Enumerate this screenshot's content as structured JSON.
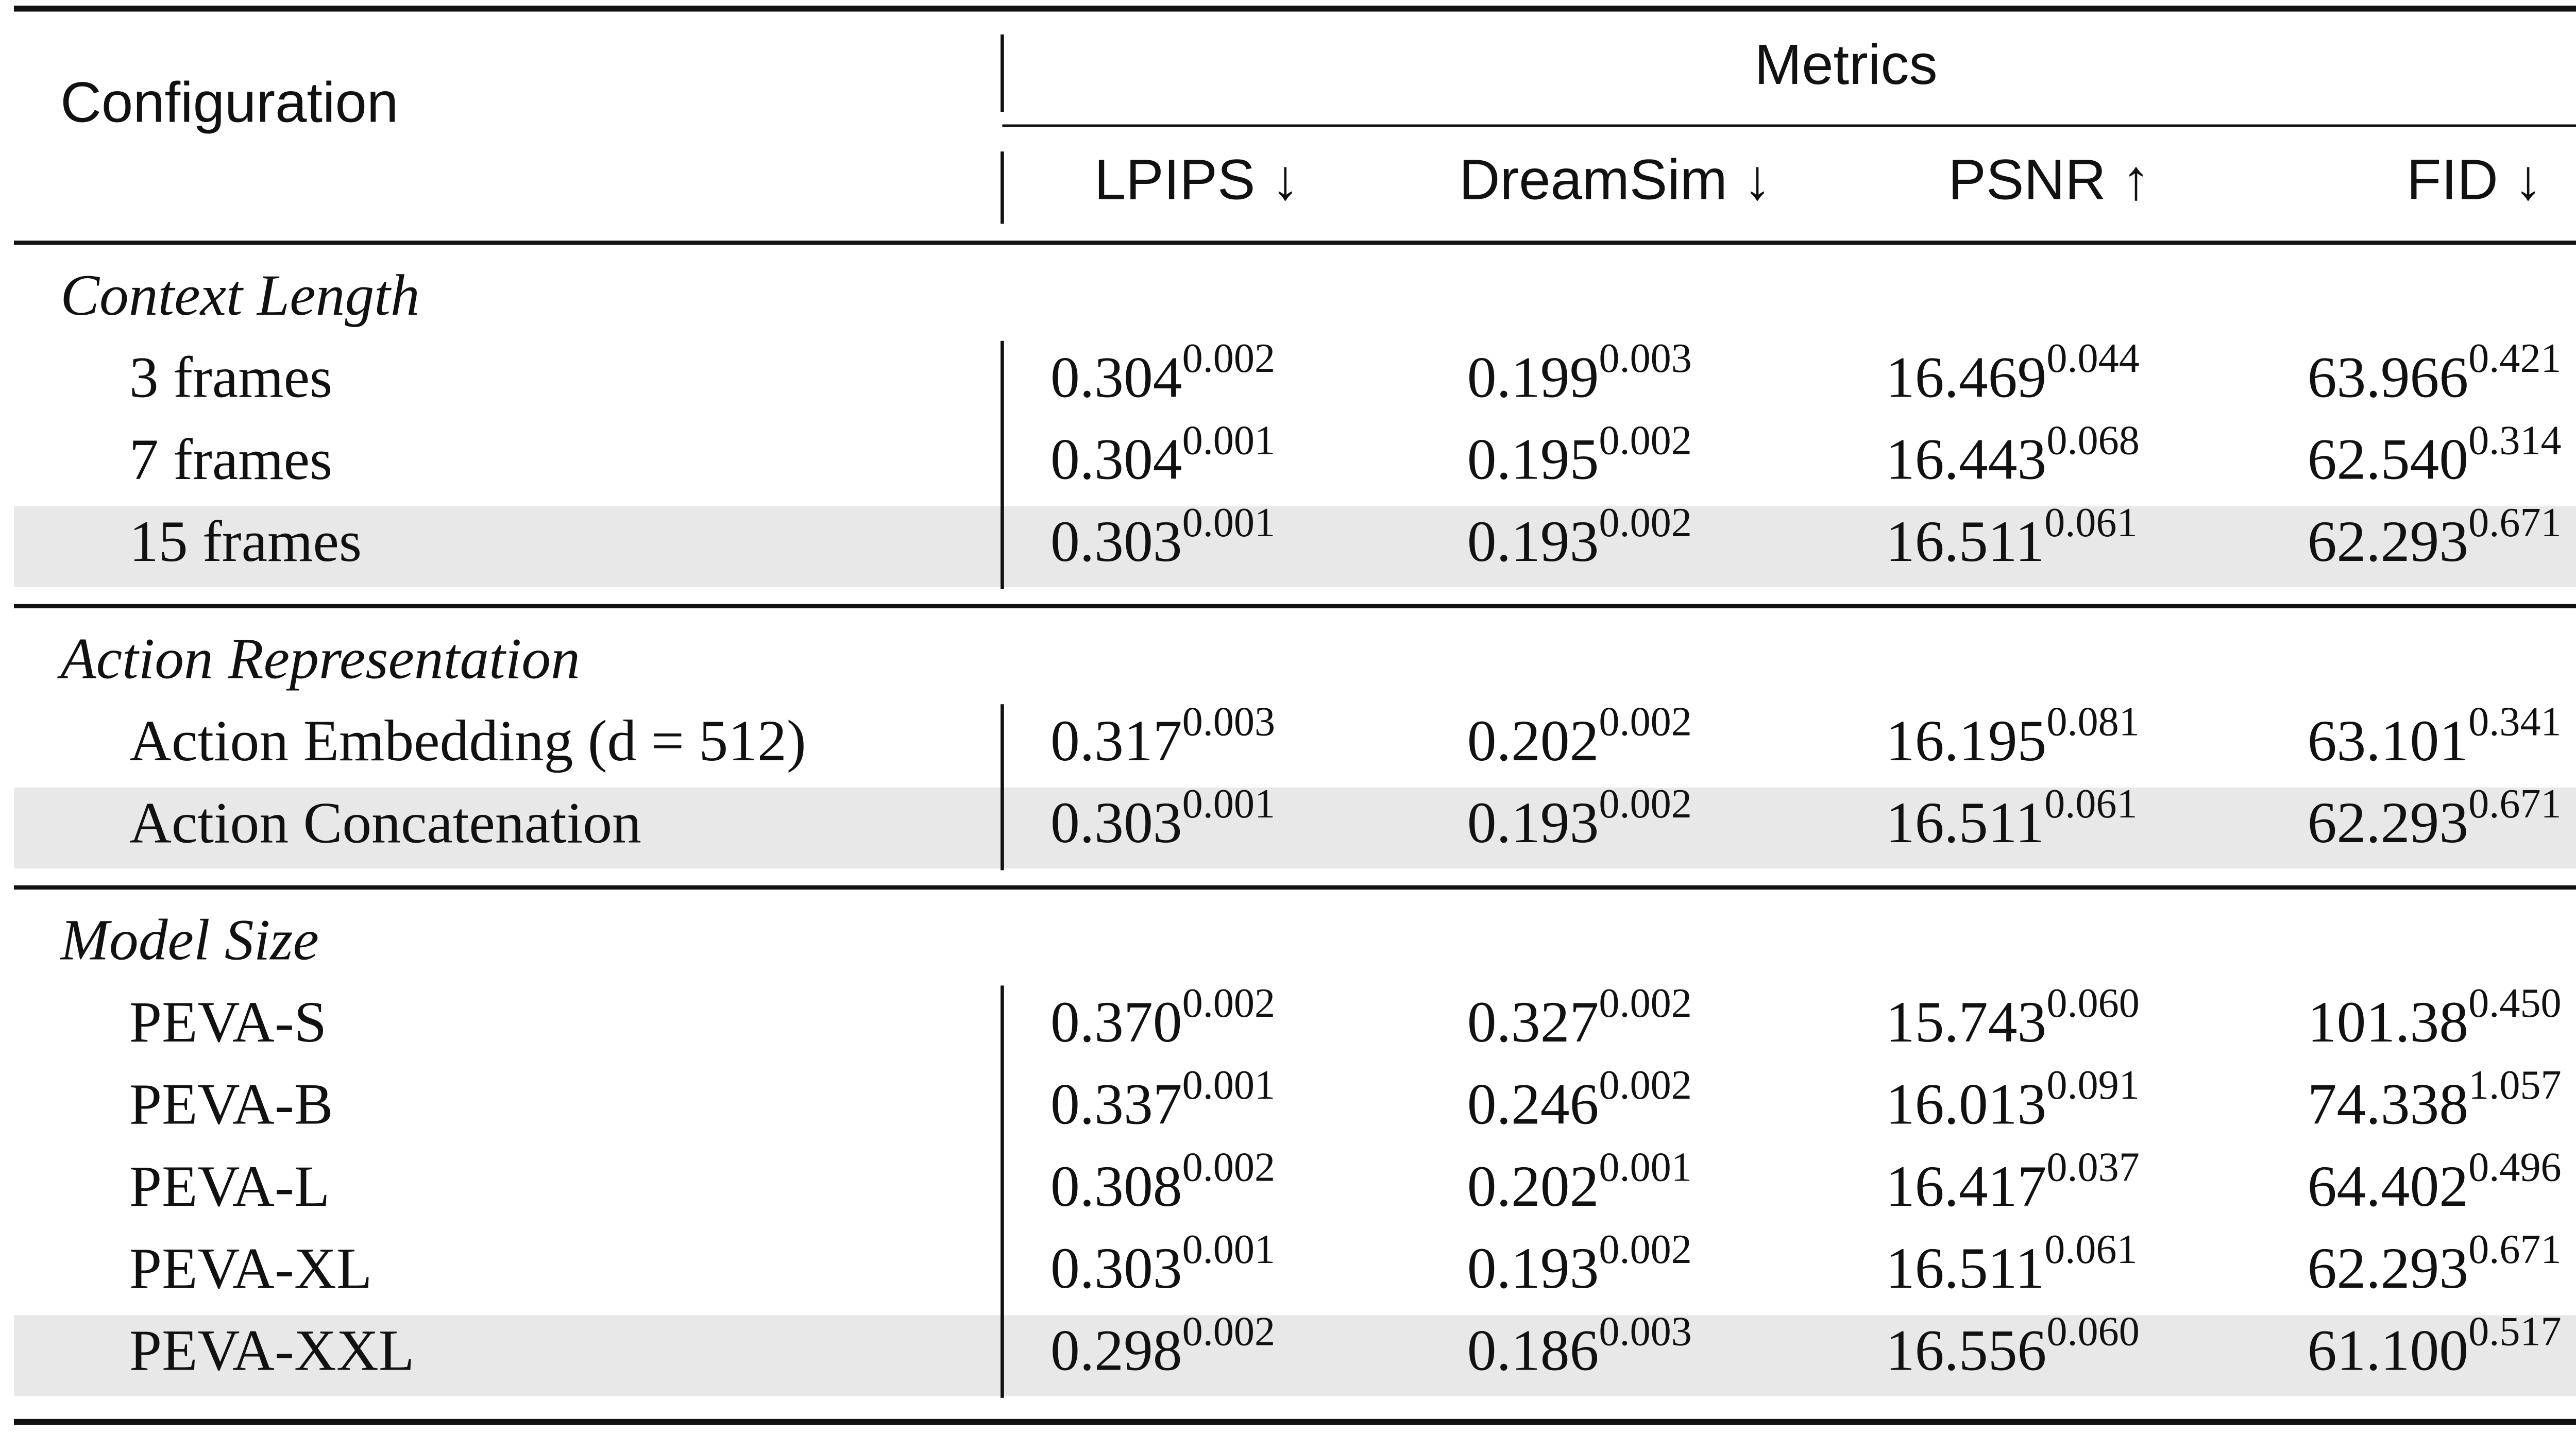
{
  "table": {
    "header": {
      "configuration": "Configuration",
      "metrics": "Metrics",
      "columns": [
        "LPIPS ↓",
        "DreamSim ↓",
        "PSNR ↑",
        "FID ↓"
      ]
    },
    "sections": [
      {
        "title": "Context Length",
        "rows": [
          {
            "label": "3 frames",
            "cells": [
              {
                "value": "0.304",
                "sup": "0.002"
              },
              {
                "value": "0.199",
                "sup": "0.003"
              },
              {
                "value": "16.469",
                "sup": "0.044"
              },
              {
                "value": "63.966",
                "sup": "0.421"
              }
            ]
          },
          {
            "label": "7 frames",
            "cells": [
              {
                "value": "0.304",
                "sup": "0.001"
              },
              {
                "value": "0.195",
                "sup": "0.002"
              },
              {
                "value": "16.443",
                "sup": "0.068"
              },
              {
                "value": "62.540",
                "sup": "0.314"
              }
            ]
          },
          {
            "label": "15 frames",
            "shaded": true,
            "cells": [
              {
                "value": "0.303",
                "sup": "0.001"
              },
              {
                "value": "0.193",
                "sup": "0.002"
              },
              {
                "value": "16.511",
                "sup": "0.061"
              },
              {
                "value": "62.293",
                "sup": "0.671"
              }
            ]
          }
        ]
      },
      {
        "title": "Action Representation",
        "rows": [
          {
            "label": "Action Embedding (d = 512)",
            "cells": [
              {
                "value": "0.317",
                "sup": "0.003"
              },
              {
                "value": "0.202",
                "sup": "0.002"
              },
              {
                "value": "16.195",
                "sup": "0.081"
              },
              {
                "value": "63.101",
                "sup": "0.341"
              }
            ]
          },
          {
            "label": "Action Concatenation",
            "shaded": true,
            "cells": [
              {
                "value": "0.303",
                "sup": "0.001"
              },
              {
                "value": "0.193",
                "sup": "0.002"
              },
              {
                "value": "16.511",
                "sup": "0.061"
              },
              {
                "value": "62.293",
                "sup": "0.671"
              }
            ]
          }
        ]
      },
      {
        "title": "Model Size",
        "rows": [
          {
            "label": "PEVA-S",
            "cells": [
              {
                "value": "0.370",
                "sup": "0.002"
              },
              {
                "value": "0.327",
                "sup": "0.002"
              },
              {
                "value": "15.743",
                "sup": "0.060"
              },
              {
                "value": "101.38",
                "sup": "0.450"
              }
            ]
          },
          {
            "label": "PEVA-B",
            "cells": [
              {
                "value": "0.337",
                "sup": "0.001"
              },
              {
                "value": "0.246",
                "sup": "0.002"
              },
              {
                "value": "16.013",
                "sup": "0.091"
              },
              {
                "value": "74.338",
                "sup": "1.057"
              }
            ]
          },
          {
            "label": "PEVA-L",
            "cells": [
              {
                "value": "0.308",
                "sup": "0.002"
              },
              {
                "value": "0.202",
                "sup": "0.001"
              },
              {
                "value": "16.417",
                "sup": "0.037"
              },
              {
                "value": "64.402",
                "sup": "0.496"
              }
            ]
          },
          {
            "label": "PEVA-XL",
            "cells": [
              {
                "value": "0.303",
                "sup": "0.001"
              },
              {
                "value": "0.193",
                "sup": "0.002"
              },
              {
                "value": "16.511",
                "sup": "0.061"
              },
              {
                "value": "62.293",
                "sup": "0.671"
              }
            ]
          },
          {
            "label": "PEVA-XXL",
            "shaded": true,
            "cells": [
              {
                "value": "0.298",
                "sup": "0.002"
              },
              {
                "value": "0.186",
                "sup": "0.003"
              },
              {
                "value": "16.556",
                "sup": "0.060"
              },
              {
                "value": "61.100",
                "sup": "0.517"
              }
            ]
          }
        ]
      }
    ]
  }
}
